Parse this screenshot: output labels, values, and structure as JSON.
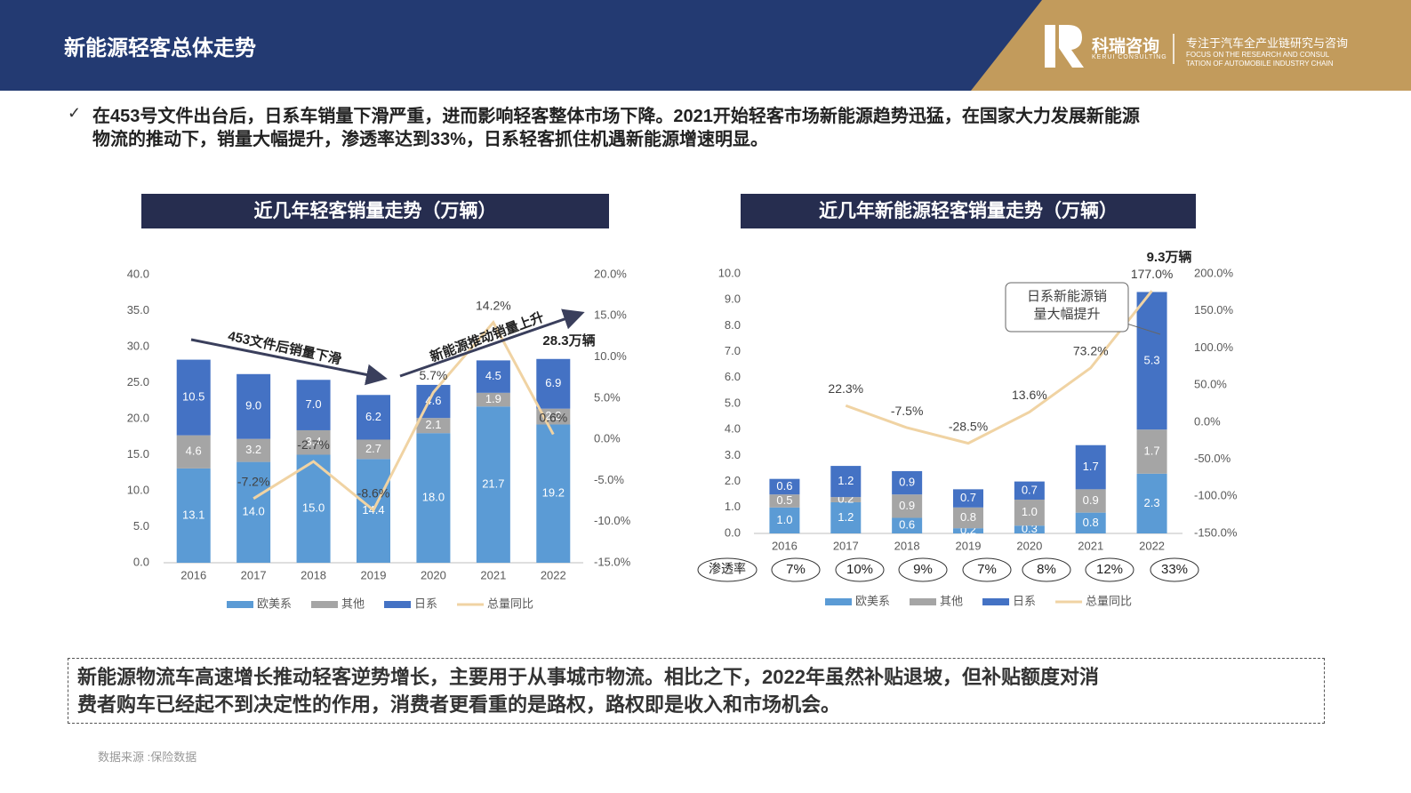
{
  "header": {
    "title": "新能源轻客总体走势",
    "logo_name": "科瑞咨询",
    "logo_en": "KERUI CONSULTING",
    "slogan": "专注于汽车全产业链研究与咨询",
    "slogan_en": [
      "FOCUS ON THE RESEARCH AND CONSUL",
      "TATION OF AUTOMOBILE INDUSTRY CHAIN"
    ]
  },
  "summary": [
    "在453号文件出台后，日系车销量下滑严重，进而影响轻客整体市场下降。2021开始轻客市场新能源趋势迅猛，在国家大力发展新能源",
    "物流的推动下，销量大幅提升，渗透率达到33%，日系轻客抓住机遇新能源增速明显。"
  ],
  "chart_data": [
    {
      "type": "bar",
      "stacked": true,
      "title": "近几年轻客销量走势（万辆）",
      "categories": [
        "2016",
        "2017",
        "2018",
        "2019",
        "2020",
        "2021",
        "2022"
      ],
      "series": [
        {
          "name": "欧美系",
          "color": "#5b9bd5",
          "values": [
            13.1,
            14.0,
            15.0,
            14.4,
            18.0,
            21.7,
            19.2
          ],
          "value_labels": [
            "13.1",
            "14.0",
            "15.0",
            "14.4",
            "18.0",
            "21.7",
            "19.2"
          ]
        },
        {
          "name": "其他",
          "color": "#a5a5a5",
          "values": [
            4.6,
            3.2,
            3.4,
            2.7,
            2.1,
            1.9,
            2.2
          ],
          "value_labels": [
            "4.6",
            "3.2",
            "3.4",
            "2.7",
            "2.1",
            "1.9",
            "2.2"
          ]
        },
        {
          "name": "日系",
          "color": "#4472c4",
          "values": [
            10.5,
            9.0,
            7.0,
            6.2,
            4.6,
            4.5,
            6.9
          ],
          "value_labels": [
            "10.5",
            "9.0",
            "7.0",
            "6.2",
            "4.6",
            "4.5",
            "6.9"
          ]
        },
        {
          "name": "总量同比",
          "color": "#f0d3a3",
          "axis": "y2",
          "kind": "line",
          "values": [
            null,
            -7.2,
            -2.7,
            -8.6,
            5.7,
            14.2,
            0.6
          ],
          "value_labels": [
            null,
            "-7.2%",
            "-2.7%",
            "-8.6%",
            "5.7%",
            "14.2%",
            "0.6%"
          ]
        }
      ],
      "ylim": [
        0,
        40
      ],
      "yticks": [
        {
          "value": 0,
          "label": "0.0"
        },
        {
          "value": 5,
          "label": "5.0"
        },
        {
          "value": 10,
          "label": "10.0"
        },
        {
          "value": 15,
          "label": "15.0"
        },
        {
          "value": 20,
          "label": "20.0"
        },
        {
          "value": 25,
          "label": "25.0"
        },
        {
          "value": 30,
          "label": "30.0"
        },
        {
          "value": 35,
          "label": "35.0"
        },
        {
          "value": 40,
          "label": "40.0"
        }
      ],
      "y2lim": [
        -15,
        20
      ],
      "y2ticks": [
        {
          "value": -15,
          "label": "-15.0%"
        },
        {
          "value": -10,
          "label": "-10.0%"
        },
        {
          "value": -5,
          "label": "-5.0%"
        },
        {
          "value": 0,
          "label": "0.0%"
        },
        {
          "value": 5,
          "label": "5.0%"
        },
        {
          "value": 10,
          "label": "10.0%"
        },
        {
          "value": 15,
          "label": "15.0%"
        },
        {
          "value": 20,
          "label": "20.0%"
        }
      ],
      "grid": false,
      "legend": "bottom",
      "annotations": [
        "453文件后销量下滑",
        "新能源推动销量上升",
        "28.3万辆"
      ]
    },
    {
      "type": "bar",
      "stacked": true,
      "title": "近几年新能源轻客销量走势（万辆）",
      "categories": [
        "2016",
        "2017",
        "2018",
        "2019",
        "2020",
        "2021",
        "2022"
      ],
      "series": [
        {
          "name": "欧美系",
          "color": "#5b9bd5",
          "values": [
            1.0,
            1.2,
            0.6,
            0.2,
            0.3,
            0.8,
            2.3
          ],
          "value_labels": [
            "1.0",
            "1.2",
            "0.6",
            "0.2",
            "0.3",
            "0.8",
            "2.3"
          ]
        },
        {
          "name": "其他",
          "color": "#a5a5a5",
          "values": [
            0.5,
            0.2,
            0.9,
            0.8,
            1.0,
            0.9,
            1.7
          ],
          "value_labels": [
            "0.5",
            "0.2",
            "0.9",
            "0.8",
            "1.0",
            "0.9",
            "1.7"
          ]
        },
        {
          "name": "日系",
          "color": "#4472c4",
          "values": [
            0.6,
            1.2,
            0.9,
            0.7,
            0.7,
            1.7,
            5.3
          ],
          "value_labels": [
            "0.6",
            "1.2",
            "0.9",
            "0.7",
            "0.7",
            "1.7",
            "5.3"
          ]
        },
        {
          "name": "总量同比",
          "color": "#f0d3a3",
          "axis": "y2",
          "kind": "line",
          "values": [
            null,
            22.3,
            -7.5,
            -28.5,
            13.6,
            73.2,
            177.0
          ],
          "value_labels": [
            null,
            "22.3%",
            "-7.5%",
            "-28.5%",
            "13.6%",
            "73.2%",
            "177.0%"
          ]
        }
      ],
      "ylim": [
        0,
        10
      ],
      "yticks": [
        {
          "value": 0,
          "label": "0.0"
        },
        {
          "value": 1,
          "label": "1.0"
        },
        {
          "value": 2,
          "label": "2.0"
        },
        {
          "value": 3,
          "label": "3.0"
        },
        {
          "value": 4,
          "label": "4.0"
        },
        {
          "value": 5,
          "label": "5.0"
        },
        {
          "value": 6,
          "label": "6.0"
        },
        {
          "value": 7,
          "label": "7.0"
        },
        {
          "value": 8,
          "label": "8.0"
        },
        {
          "value": 9,
          "label": "9.0"
        },
        {
          "value": 10,
          "label": "10.0"
        }
      ],
      "y2lim": [
        -150,
        200
      ],
      "y2ticks": [
        {
          "value": -150,
          "label": "-150.0%"
        },
        {
          "value": -100,
          "label": "-100.0%"
        },
        {
          "value": -50,
          "label": "-50.0%"
        },
        {
          "value": 0,
          "label": "0.0%"
        },
        {
          "value": 50,
          "label": "50.0%"
        },
        {
          "value": 100,
          "label": "100.0%"
        },
        {
          "value": 150,
          "label": "150.0%"
        },
        {
          "value": 200,
          "label": "200.0%"
        }
      ],
      "grid": false,
      "legend": "bottom",
      "annotations": [
        "9.3万辆"
      ],
      "callout": [
        "日系新能源销",
        "量大幅提升"
      ],
      "penetration": {
        "name": "渗透率",
        "values": [
          7,
          10,
          9,
          7,
          8,
          12,
          33
        ],
        "value_labels": [
          "7%",
          "10%",
          "9%",
          "7%",
          "8%",
          "12%",
          "33%"
        ]
      }
    }
  ],
  "conclusion": [
    "新能源物流车高速增长推动轻客逆势增长，主要用于从事城市物流。相比之下，2022年虽然补贴退坡，但补贴额度对消",
    "费者购车已经起不到决定性的作用，消费者更看重的是路权，路权即是收入和市场机会。"
  ],
  "source": "数据来源 :保险数据"
}
